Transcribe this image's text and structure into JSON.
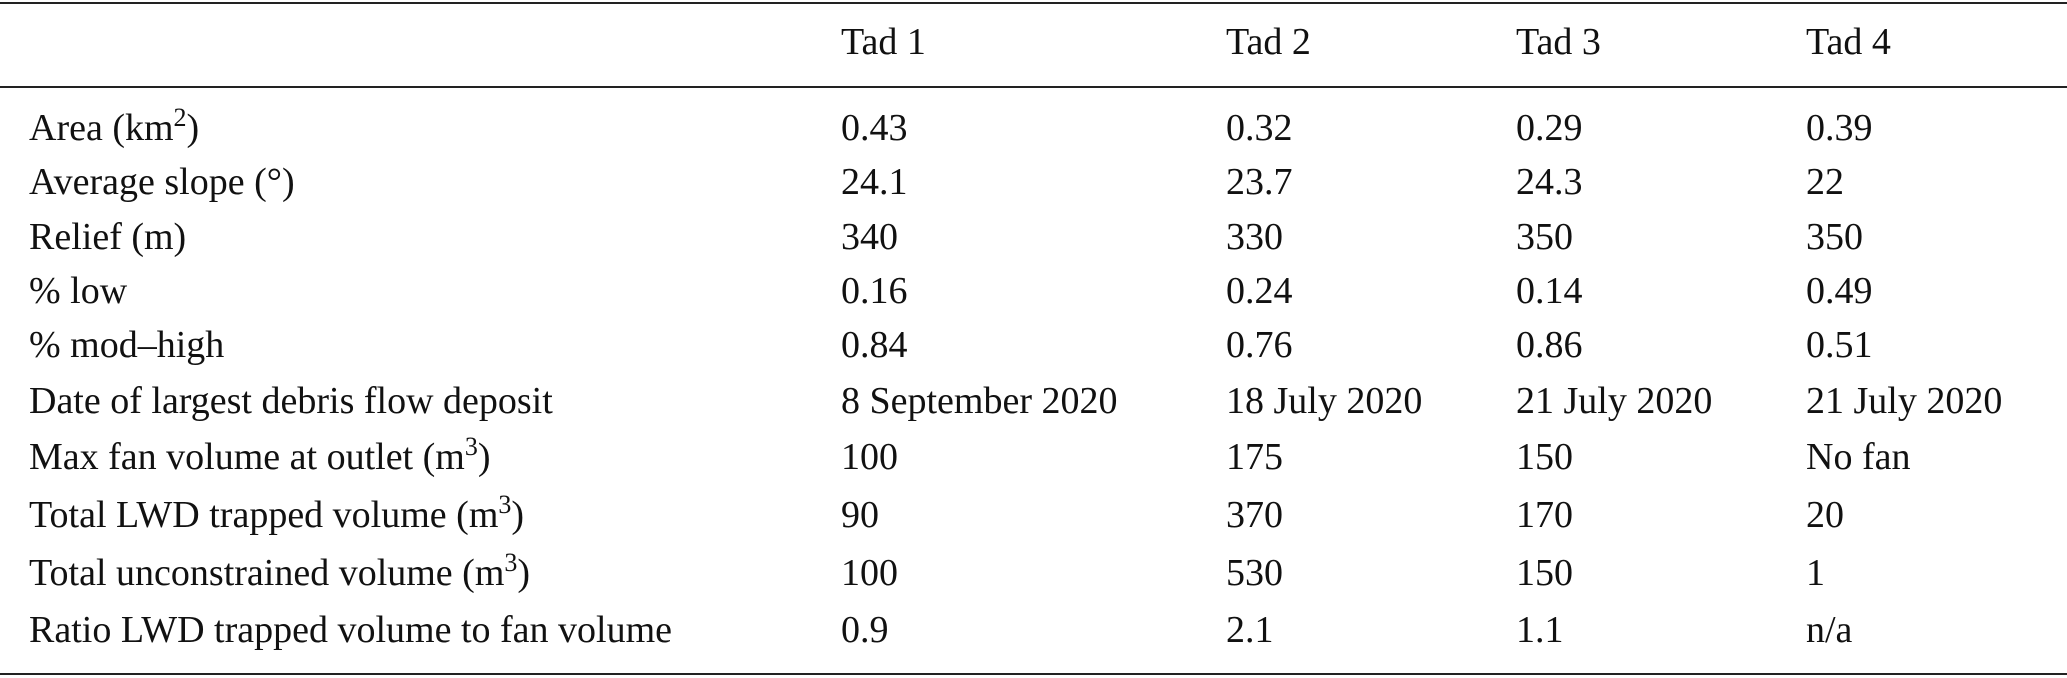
{
  "table": {
    "columns": [
      "Tad 1",
      "Tad 2",
      "Tad 3",
      "Tad 4"
    ],
    "rows": [
      {
        "label": {
          "text": "Area (km",
          "sup": "2",
          "tail": ")"
        },
        "values": [
          "0.43",
          "0.32",
          "0.29",
          "0.39"
        ]
      },
      {
        "label": "Average slope (°)",
        "values": [
          "24.1",
          "23.7",
          "24.3",
          "22"
        ]
      },
      {
        "label": "Relief (m)",
        "values": [
          "340",
          "330",
          "350",
          "350"
        ]
      },
      {
        "label": "% low",
        "values": [
          "0.16",
          "0.24",
          "0.14",
          "0.49"
        ]
      },
      {
        "label": "% mod–high",
        "values": [
          "0.84",
          "0.76",
          "0.86",
          "0.51"
        ]
      },
      {
        "label": "Date of largest debris flow deposit",
        "values": [
          "8 September 2020",
          "18 July 2020",
          "21 July 2020",
          "21 July 2020"
        ]
      },
      {
        "label": {
          "text": "Max fan volume at outlet (m",
          "sup": "3",
          "tail": ")"
        },
        "values": [
          "100",
          "175",
          "150",
          "No fan"
        ]
      },
      {
        "label": {
          "text": "Total LWD trapped volume (m",
          "sup": "3",
          "tail": ")"
        },
        "values": [
          "90",
          "370",
          "170",
          "20"
        ]
      },
      {
        "label": {
          "text": "Total unconstrained volume (m",
          "sup": "3",
          "tail": ")"
        },
        "values": [
          "100",
          "530",
          "150",
          "1"
        ]
      },
      {
        "label": "Ratio LWD trapped volume to fan volume",
        "values": [
          "0.9",
          "2.1",
          "1.1",
          "n/a"
        ]
      }
    ]
  }
}
